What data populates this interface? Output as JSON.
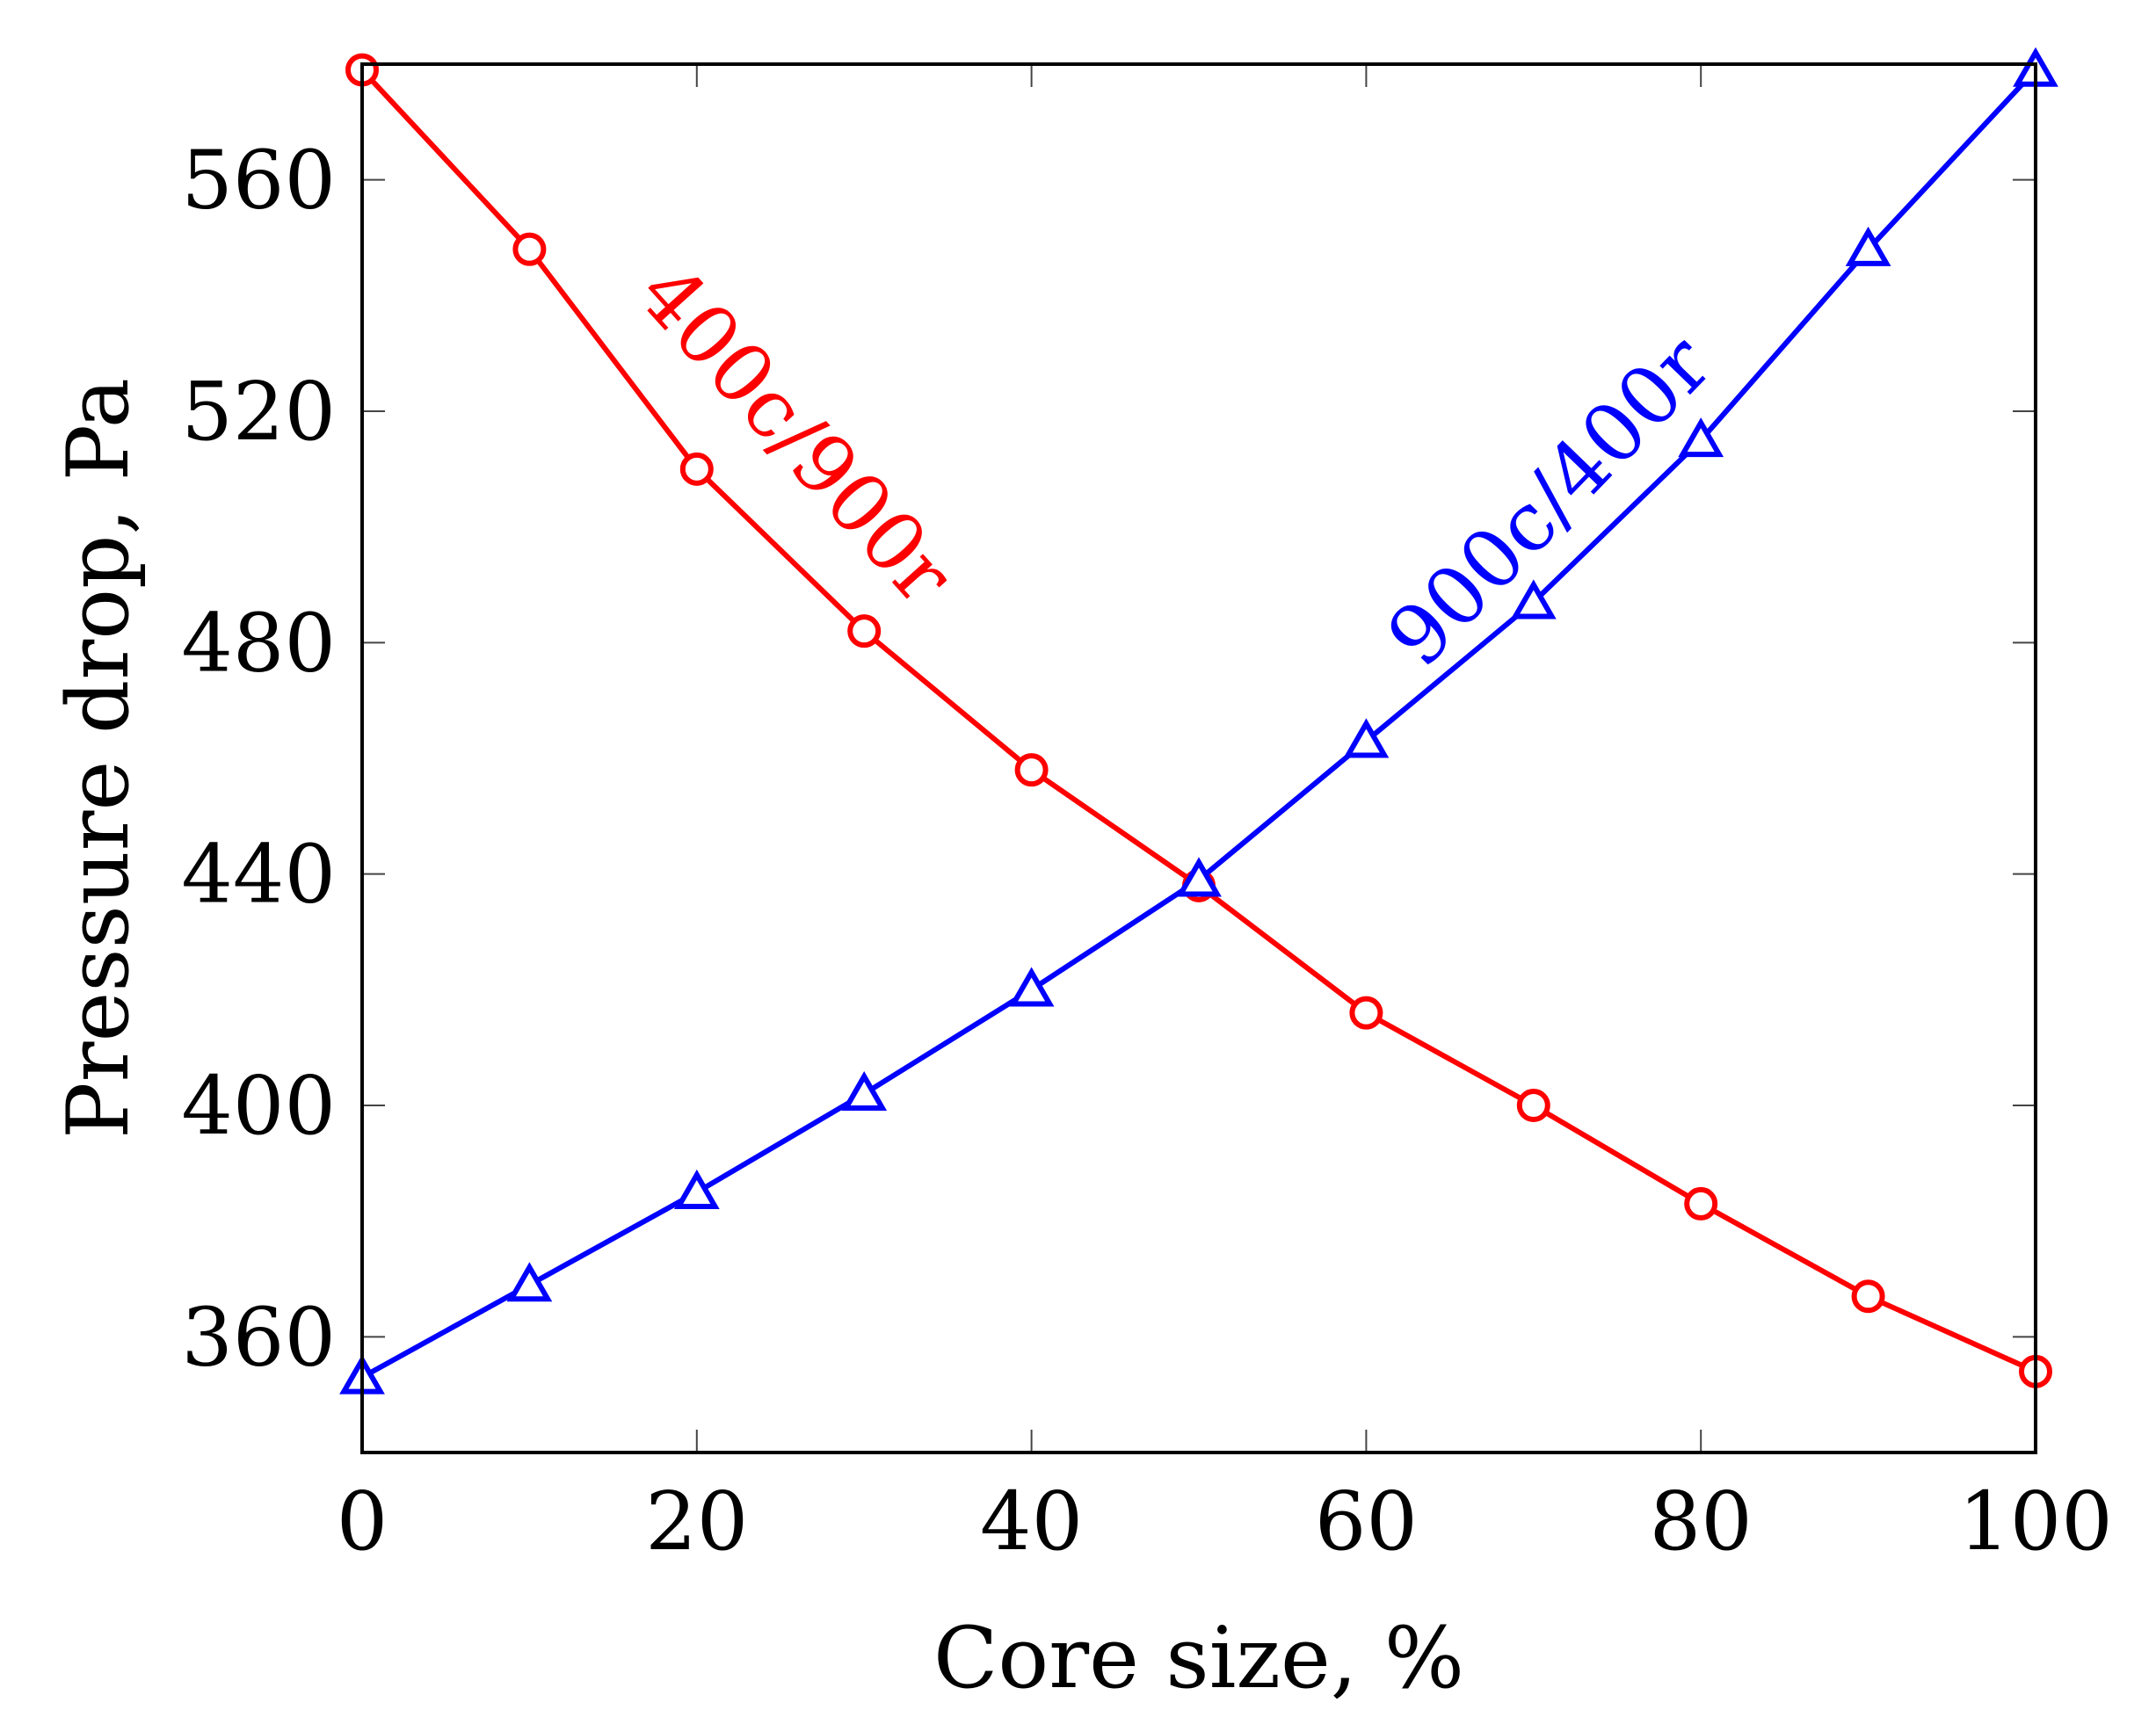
{
  "chart_data": {
    "type": "line",
    "title": "",
    "xlabel": "Core size, %",
    "ylabel": "Pressure drop, Pa",
    "xlim": [
      0,
      100
    ],
    "ylim": [
      340,
      580
    ],
    "xticks": [
      0,
      20,
      40,
      60,
      80,
      100
    ],
    "yticks": [
      360,
      400,
      440,
      480,
      520,
      560
    ],
    "grid": false,
    "legend": "none",
    "x": [
      0,
      10,
      20,
      30,
      40,
      50,
      60,
      70,
      80,
      90,
      100
    ],
    "series": [
      {
        "name": "400c/900r",
        "color": "#ff0000",
        "marker": "circle",
        "values": [
          579,
          548,
          510,
          482,
          458,
          438,
          416,
          400,
          383,
          367,
          354
        ]
      },
      {
        "name": "900c/400r",
        "color": "#0000ff",
        "marker": "triangle",
        "values": [
          353,
          369,
          385,
          402,
          420,
          439,
          463,
          487,
          515,
          548,
          579
        ]
      }
    ]
  }
}
